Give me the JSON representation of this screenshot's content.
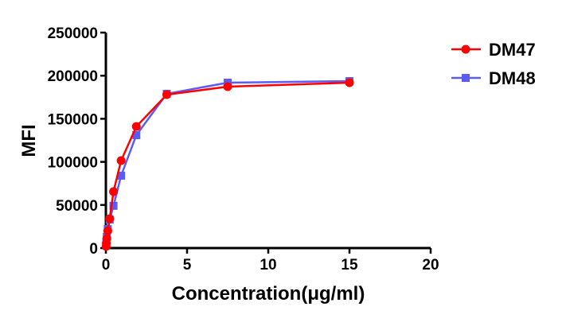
{
  "chart_data": {
    "type": "line",
    "title": "",
    "xlabel": "Concentration(μg/ml)",
    "ylabel": "MFI",
    "xlim": [
      0,
      20
    ],
    "ylim": [
      0,
      250000
    ],
    "xticks": [
      0,
      5,
      10,
      15,
      20
    ],
    "yticks": [
      0,
      50000,
      100000,
      150000,
      200000,
      250000
    ],
    "xtick_labels": [
      "0",
      "5",
      "10",
      "15",
      "20"
    ],
    "ytick_labels": [
      "0",
      "50000",
      "100000",
      "150000",
      "200000",
      "250000"
    ],
    "grid": false,
    "legend_position": "top-right",
    "x": [
      15,
      7.5,
      3.75,
      1.875,
      0.9375,
      0.469,
      0.234,
      0.117,
      0.0586,
      0.0293,
      0.0146
    ],
    "series": [
      {
        "name": "DM47",
        "color": "#ff0000",
        "marker": "circle",
        "values": [
          191900,
          187300,
          178000,
          141000,
          101500,
          65500,
          34000,
          20000,
          11000,
          5500,
          2000
        ]
      },
      {
        "name": "DM48",
        "color": "#5b5bf5",
        "marker": "square",
        "values": [
          193700,
          191900,
          179000,
          131000,
          84000,
          49000,
          33000,
          22000,
          13000,
          7000,
          3000
        ]
      }
    ]
  }
}
